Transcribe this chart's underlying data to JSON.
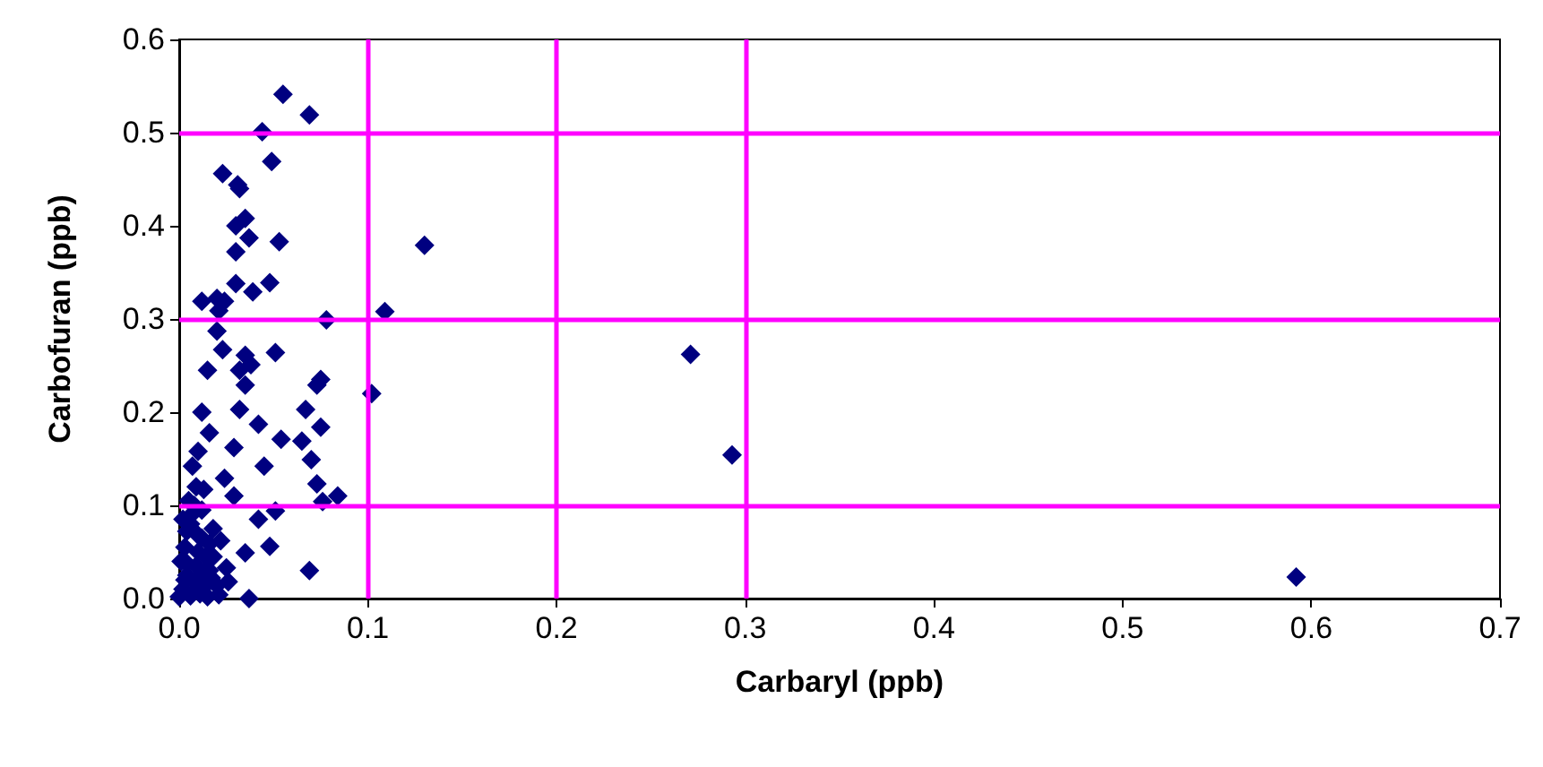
{
  "chart_data": {
    "type": "scatter",
    "xlabel": "Carbaryl (ppb)",
    "ylabel": "Carbofuran (ppb)",
    "x": [
      0.055,
      0.069,
      0.044,
      0.049,
      0.023,
      0.031,
      0.032,
      0.035,
      0.03,
      0.037,
      0.03,
      0.053,
      0.13,
      0.012,
      0.02,
      0.024,
      0.03,
      0.039,
      0.048,
      0.021,
      0.078,
      0.109,
      0.02,
      0.023,
      0.035,
      0.051,
      0.015,
      0.032,
      0.038,
      0.035,
      0.075,
      0.073,
      0.102,
      0.012,
      0.032,
      0.067,
      0.042,
      0.016,
      0.075,
      0.054,
      0.065,
      0.01,
      0.029,
      0.045,
      0.07,
      0.007,
      0.024,
      0.073,
      0.084,
      0.076,
      0.013,
      0.029,
      0.042,
      0.051,
      0.048,
      0.035,
      0.069,
      0.037,
      0.004,
      0.001,
      0.013,
      0.02,
      0.025,
      0.0,
      0.016,
      0.007,
      0.01,
      0.003,
      0.018,
      0.012,
      0.005,
      0.002,
      0.004,
      0.006,
      0.008,
      0.009,
      0.011,
      0.013,
      0.015,
      0.017,
      0.021,
      0.003,
      0.006,
      0.01,
      0.014,
      0.018,
      0.022,
      0.026,
      0.002,
      0.008,
      0.012,
      0.016,
      0.004,
      0.009,
      0.271,
      0.293,
      0.592
    ],
    "values": [
      0.541,
      0.519,
      0.501,
      0.469,
      0.456,
      0.444,
      0.44,
      0.408,
      0.4,
      0.387,
      0.372,
      0.383,
      0.379,
      0.319,
      0.322,
      0.319,
      0.338,
      0.329,
      0.339,
      0.309,
      0.299,
      0.308,
      0.287,
      0.267,
      0.261,
      0.264,
      0.245,
      0.245,
      0.251,
      0.229,
      0.235,
      0.229,
      0.22,
      0.2,
      0.203,
      0.203,
      0.187,
      0.178,
      0.184,
      0.171,
      0.169,
      0.158,
      0.162,
      0.142,
      0.149,
      0.142,
      0.129,
      0.123,
      0.11,
      0.104,
      0.117,
      0.11,
      0.085,
      0.094,
      0.056,
      0.049,
      0.03,
      0.0,
      0.072,
      0.04,
      0.027,
      0.014,
      0.033,
      0.002,
      0.059,
      0.091,
      0.05,
      0.02,
      0.045,
      0.065,
      0.105,
      0.01,
      0.025,
      0.003,
      0.018,
      0.035,
      0.005,
      0.012,
      0.002,
      0.022,
      0.004,
      0.055,
      0.08,
      0.068,
      0.045,
      0.075,
      0.062,
      0.018,
      0.085,
      0.1,
      0.095,
      0.03,
      0.038,
      0.12,
      0.262,
      0.154,
      0.023
    ],
    "color": "#000080",
    "marker": "diamond",
    "xlim": [
      0,
      0.7
    ],
    "xticks": [
      {
        "value": 0,
        "label": "0.0"
      },
      {
        "value": 0.1,
        "label": "0.1"
      },
      {
        "value": 0.2,
        "label": "0.2"
      },
      {
        "value": 0.3,
        "label": "0.3"
      },
      {
        "value": 0.4,
        "label": "0.4"
      },
      {
        "value": 0.5,
        "label": "0.5"
      },
      {
        "value": 0.6,
        "label": "0.6"
      },
      {
        "value": 0.7,
        "label": "0.7"
      }
    ],
    "ylim": [
      0,
      0.6
    ],
    "yticks": [
      {
        "value": 0,
        "label": "0.0"
      },
      {
        "value": 0.1,
        "label": "0.1"
      },
      {
        "value": 0.2,
        "label": "0.2"
      },
      {
        "value": 0.3,
        "label": "0.3"
      },
      {
        "value": 0.4,
        "label": "0.4"
      },
      {
        "value": 0.5,
        "label": "0.5"
      },
      {
        "value": 0.6,
        "label": "0.6"
      }
    ],
    "grid": false,
    "ref_lines": [
      {
        "axis": "x",
        "value": 0.1,
        "color": "#ff00ff"
      },
      {
        "axis": "x",
        "value": 0.2,
        "color": "#ff00ff"
      },
      {
        "axis": "x",
        "value": 0.3,
        "color": "#ff00ff"
      },
      {
        "axis": "y",
        "value": 0.1,
        "color": "#ff00ff"
      },
      {
        "axis": "y",
        "value": 0.3,
        "color": "#ff00ff"
      },
      {
        "axis": "y",
        "value": 0.5,
        "color": "#ff00ff"
      }
    ]
  }
}
